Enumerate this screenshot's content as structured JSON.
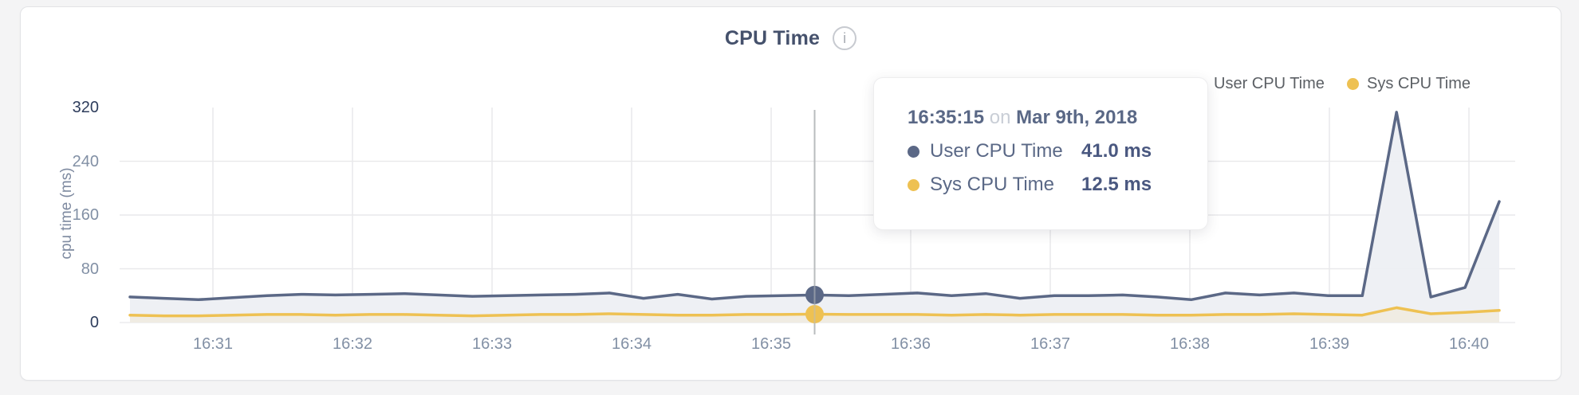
{
  "header": {
    "title": "CPU Time",
    "info_glyph": "i"
  },
  "legend": [
    {
      "label": "User CPU Time",
      "color": "#5b6886"
    },
    {
      "label": "Sys CPU Time",
      "color": "#eec152"
    }
  ],
  "tooltip": {
    "time": "16:35:15",
    "connector": "on",
    "date": "Mar 9th, 2018",
    "rows": [
      {
        "label": "User CPU Time",
        "value": "41.0 ms",
        "color": "#5b6886"
      },
      {
        "label": "Sys CPU Time",
        "value": "12.5 ms",
        "color": "#eec152"
      }
    ]
  },
  "colors": {
    "user_line": "#5b6886",
    "user_fill": "#edeff3",
    "sys_line": "#eec152",
    "sys_fill": "#f0ece1",
    "grid": "#e9e9eb",
    "baseline": "#ececee",
    "hover_line": "#b9bcbe",
    "axis_text": "#8290a5",
    "axis_text_strong": "#2e3d5c",
    "title_text": "#45516c",
    "legend_text": "#5c6065"
  },
  "chart_data": {
    "type": "area",
    "title": "CPU Time",
    "ylabel": "cpu time (ms)",
    "ylim": [
      0,
      320
    ],
    "y_ticks": [
      320,
      240,
      160,
      80,
      0
    ],
    "x_ticks": [
      "16:31",
      "16:32",
      "16:33",
      "16:34",
      "16:35",
      "16:36",
      "16:37",
      "16:38",
      "16:39",
      "16:40"
    ],
    "grid": true,
    "legend_position": "top-right",
    "x": [
      "16:30:15",
      "16:30:30",
      "16:30:45",
      "16:31:00",
      "16:31:15",
      "16:31:30",
      "16:31:45",
      "16:32:00",
      "16:32:15",
      "16:32:30",
      "16:32:45",
      "16:33:00",
      "16:33:15",
      "16:33:30",
      "16:33:45",
      "16:34:00",
      "16:34:15",
      "16:34:30",
      "16:34:45",
      "16:35:00",
      "16:35:15",
      "16:35:30",
      "16:35:45",
      "16:36:00",
      "16:36:15",
      "16:36:30",
      "16:36:45",
      "16:37:00",
      "16:37:15",
      "16:37:30",
      "16:37:45",
      "16:38:00",
      "16:38:15",
      "16:38:30",
      "16:38:45",
      "16:39:00",
      "16:39:15",
      "16:39:30",
      "16:39:45",
      "16:40:00",
      "16:40:15"
    ],
    "series": [
      {
        "name": "User CPU Time",
        "unit": "ms",
        "color": "#5b6886",
        "fill": "#edeff3",
        "values": [
          38,
          36,
          34,
          37,
          40,
          42,
          41,
          42,
          43,
          41,
          39,
          40,
          41,
          42,
          44,
          36,
          42,
          35,
          39,
          40,
          41,
          40,
          42,
          44,
          40,
          43,
          36,
          40,
          40,
          41,
          38,
          34,
          44,
          41,
          44,
          40,
          40,
          313,
          38,
          52,
          180
        ]
      },
      {
        "name": "Sys CPU Time",
        "unit": "ms",
        "color": "#eec152",
        "fill": "#f0ece1",
        "values": [
          11,
          10,
          10,
          11,
          12,
          12,
          11,
          12,
          12,
          11,
          10,
          11,
          12,
          12,
          13,
          12,
          11,
          11,
          12,
          12,
          12.5,
          12,
          12,
          12,
          11,
          12,
          11,
          12,
          12,
          12,
          11,
          11,
          12,
          12,
          13,
          12,
          11,
          22,
          13,
          15,
          18
        ]
      }
    ],
    "hover": {
      "index": 20,
      "time": "16:35:15",
      "date": "Mar 9th, 2018",
      "user_value_ms": 41.0,
      "sys_value_ms": 12.5
    }
  }
}
